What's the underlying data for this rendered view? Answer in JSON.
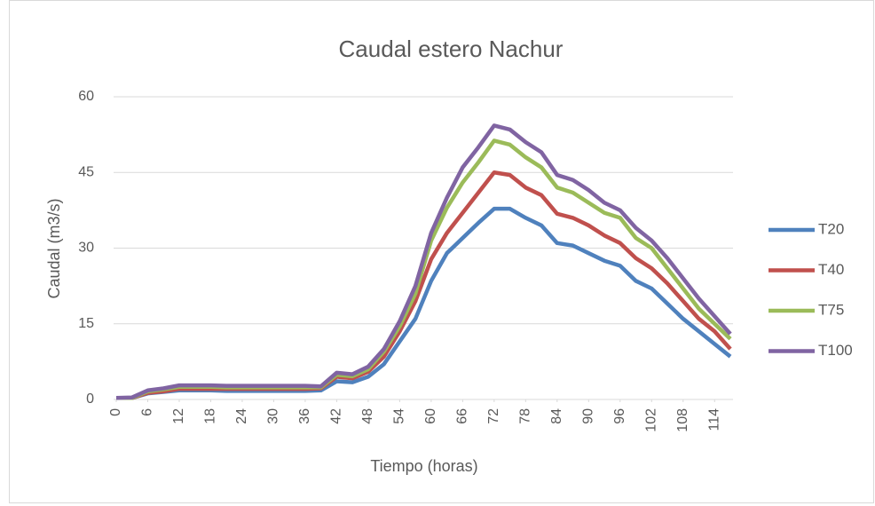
{
  "chart_data": {
    "type": "line",
    "title": "Caudal estero Nachur",
    "x_label": "Tiempo (horas)",
    "y_label": "Caudal (m3/s)",
    "x": [
      0,
      3,
      6,
      9,
      12,
      15,
      18,
      21,
      24,
      27,
      30,
      33,
      36,
      39,
      42,
      45,
      48,
      51,
      54,
      57,
      60,
      63,
      66,
      69,
      72,
      75,
      78,
      81,
      84,
      87,
      90,
      93,
      96,
      99,
      102,
      105,
      108,
      111,
      114,
      117
    ],
    "series": [
      {
        "name": "T20",
        "color": "#4f81bd",
        "values": [
          0.3,
          0.3,
          1.2,
          1.5,
          1.8,
          1.8,
          1.8,
          1.7,
          1.7,
          1.7,
          1.7,
          1.7,
          1.7,
          1.8,
          3.6,
          3.4,
          4.5,
          7,
          11.5,
          16,
          23.5,
          29,
          32,
          35,
          37.8,
          37.8,
          36,
          34.5,
          31,
          30.5,
          29,
          27.5,
          26.5,
          23.5,
          22,
          19,
          16,
          13.5,
          11,
          8.5
        ]
      },
      {
        "name": "T40",
        "color": "#c0504d",
        "values": [
          0.3,
          0.3,
          1.3,
          1.6,
          2.1,
          2.1,
          2.1,
          2.1,
          2.1,
          2.1,
          2.1,
          2.1,
          2.1,
          2.2,
          4.5,
          4.2,
          5.5,
          8.5,
          13.5,
          19.5,
          27.8,
          33,
          37,
          41,
          45,
          44.5,
          42,
          40.5,
          36.8,
          36,
          34.5,
          32.5,
          31,
          28,
          26,
          23,
          19.5,
          16,
          13.5,
          10
        ]
      },
      {
        "name": "T75",
        "color": "#9bbb59",
        "values": [
          0.3,
          0.3,
          1.6,
          2,
          2.5,
          2.5,
          2.5,
          2.4,
          2.4,
          2.4,
          2.4,
          2.4,
          2.4,
          2.4,
          4.9,
          4.6,
          6,
          9.5,
          14.5,
          21,
          31.5,
          38,
          43,
          47,
          51.3,
          50.5,
          48,
          46,
          42,
          41,
          39,
          37,
          36,
          32,
          30,
          26,
          22,
          18,
          15,
          12
        ]
      },
      {
        "name": "T100",
        "color": "#8064a2",
        "values": [
          0.3,
          0.4,
          1.8,
          2.2,
          2.8,
          2.8,
          2.8,
          2.7,
          2.7,
          2.7,
          2.7,
          2.7,
          2.7,
          2.6,
          5.3,
          5,
          6.5,
          10,
          15.5,
          22.5,
          33,
          40,
          46,
          50,
          54.3,
          53.5,
          51,
          49,
          44.5,
          43.5,
          41.5,
          39,
          37.5,
          34,
          31.5,
          28,
          24,
          20,
          16.5,
          13
        ]
      }
    ],
    "xlim": [
      0,
      117
    ],
    "xticks": [
      0,
      6,
      12,
      18,
      24,
      30,
      36,
      42,
      48,
      54,
      60,
      66,
      72,
      78,
      84,
      90,
      96,
      102,
      108,
      114
    ],
    "ylim": [
      0,
      60
    ],
    "yticks": [
      0,
      15,
      30,
      45,
      60
    ],
    "grid": true,
    "legend": "right"
  }
}
